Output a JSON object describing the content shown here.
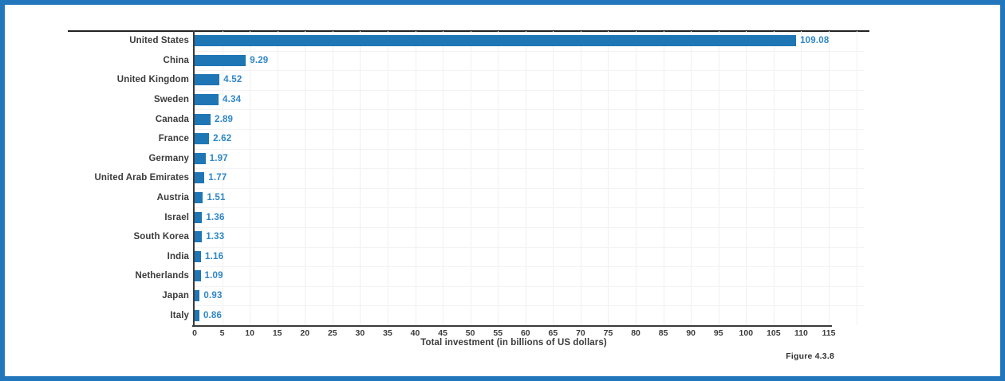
{
  "frame": {
    "border_color": "#2176bc",
    "background": "#ffffff"
  },
  "figure_label": "Figure 4.3.8",
  "chart_data": {
    "type": "bar",
    "orientation": "horizontal",
    "title": "",
    "xlabel": "Total investment (in billions of US dollars)",
    "ylabel": "",
    "categories": [
      "United States",
      "China",
      "United Kingdom",
      "Sweden",
      "Canada",
      "France",
      "Germany",
      "United Arab Emirates",
      "Austria",
      "Israel",
      "South Korea",
      "India",
      "Netherlands",
      "Japan",
      "Italy"
    ],
    "values": [
      109.08,
      9.29,
      4.52,
      4.34,
      2.89,
      2.62,
      1.97,
      1.77,
      1.51,
      1.36,
      1.33,
      1.16,
      1.09,
      0.93,
      0.86
    ],
    "value_labels": [
      "109.08",
      "9.29",
      "4.52",
      "4.34",
      "2.89",
      "2.62",
      "1.97",
      "1.77",
      "1.51",
      "1.36",
      "1.33",
      "1.16",
      "1.09",
      "0.93",
      "0.86"
    ],
    "xlim": [
      0,
      115
    ],
    "xticks": [
      0,
      5,
      10,
      15,
      20,
      25,
      30,
      35,
      40,
      45,
      50,
      55,
      60,
      65,
      70,
      75,
      80,
      85,
      90,
      95,
      100,
      105,
      110,
      115
    ],
    "grid": true,
    "legend": false,
    "bar_color": "#1f76b5",
    "value_label_color": "#2e86c7",
    "axis_color": "#3b3b3b"
  }
}
